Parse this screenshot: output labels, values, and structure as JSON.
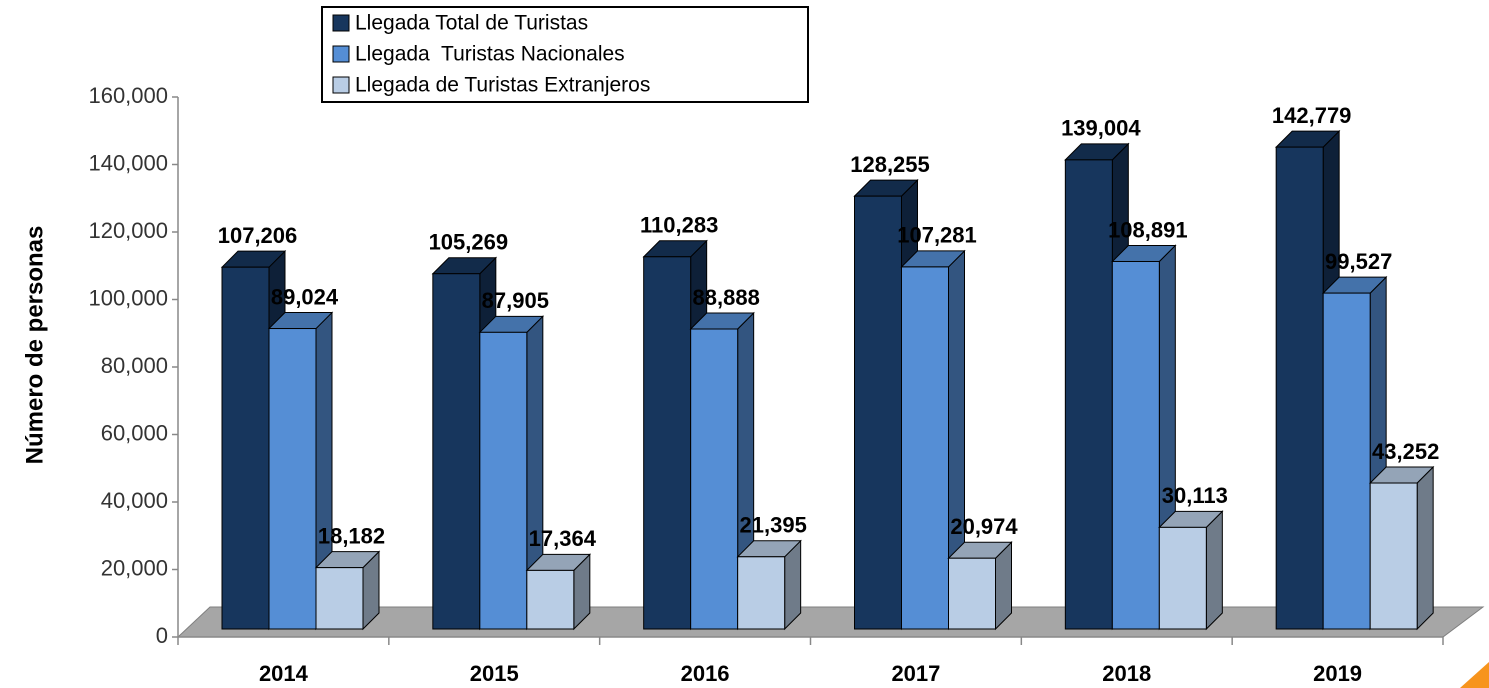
{
  "chart_data": {
    "type": "bar3d",
    "y_axis_label": "Número de personas",
    "categories": [
      "2014",
      "2015",
      "2016",
      "2017",
      "2018",
      "2019"
    ],
    "series": [
      {
        "name": "Llegada Total de Turistas",
        "color": "#17365d",
        "values": [
          107206,
          105269,
          110283,
          128255,
          139004,
          142779
        ],
        "value_labels": [
          "107,206",
          "105,269",
          "110,283",
          "128,255",
          "139,004",
          "142,779"
        ]
      },
      {
        "name": "Llegada  Turistas Nacionales",
        "color": "#558ed5",
        "values": [
          89024,
          87905,
          88888,
          107281,
          108891,
          99527
        ],
        "value_labels": [
          "89,024",
          "87,905",
          "88,888",
          "107,281",
          "108,891",
          "99,527"
        ]
      },
      {
        "name": "Llegada de Turistas Extranjeros",
        "color": "#b9cde5",
        "values": [
          18182,
          17364,
          21395,
          20974,
          30113,
          43252
        ],
        "value_labels": [
          "18,182",
          "17,364",
          "21,395",
          "20,974",
          "30,113",
          "43,252"
        ]
      }
    ],
    "ylim": [
      0,
      160000
    ],
    "yticks": [
      0,
      {
        "value": 20000,
        "label": "20,000"
      },
      {
        "value": 40000,
        "label": "40,000"
      },
      {
        "value": 60000,
        "label": "60,000"
      },
      {
        "value": 80000,
        "label": "80,000"
      },
      {
        "value": 100000,
        "label": "100,000"
      },
      {
        "value": 120000,
        "label": "120,000"
      },
      {
        "value": 140000,
        "label": "140,000"
      },
      {
        "value": 160000,
        "label": "160,000"
      }
    ],
    "grid": false,
    "legend": "top"
  }
}
